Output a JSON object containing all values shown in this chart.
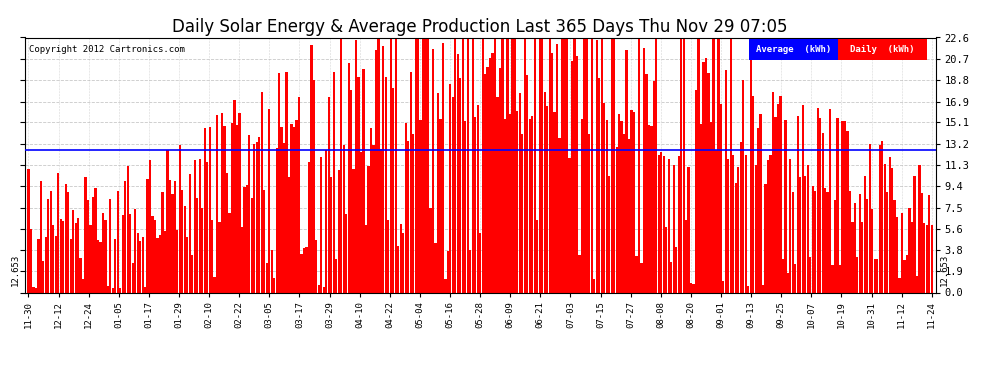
{
  "title": "Daily Solar Energy & Average Production Last 365 Days Thu Nov 29 07:05",
  "copyright": "Copyright 2012 Cartronics.com",
  "average_value": 12.653,
  "average_label": "12.653",
  "ylim": [
    0.0,
    22.6
  ],
  "yticks": [
    0.0,
    1.9,
    3.8,
    5.6,
    7.5,
    9.4,
    11.3,
    13.2,
    15.1,
    16.9,
    18.8,
    20.7,
    22.6
  ],
  "bar_color": "#FF0000",
  "avg_line_color": "#0000FF",
  "background_color": "#FFFFFF",
  "grid_color": "#BBBBBB",
  "title_fontsize": 12,
  "legend_blue_label": "Average  (kWh)",
  "legend_red_label": "Daily  (kWh)",
  "x_labels": [
    "11-30",
    "12-12",
    "12-24",
    "01-05",
    "01-17",
    "01-29",
    "02-10",
    "02-22",
    "03-05",
    "03-17",
    "03-29",
    "04-10",
    "04-22",
    "05-04",
    "05-16",
    "05-28",
    "06-09",
    "06-21",
    "07-03",
    "07-15",
    "07-27",
    "08-08",
    "08-20",
    "09-01",
    "09-13",
    "09-25",
    "10-07",
    "10-19",
    "10-31",
    "11-12",
    "11-24"
  ],
  "seed": 42
}
